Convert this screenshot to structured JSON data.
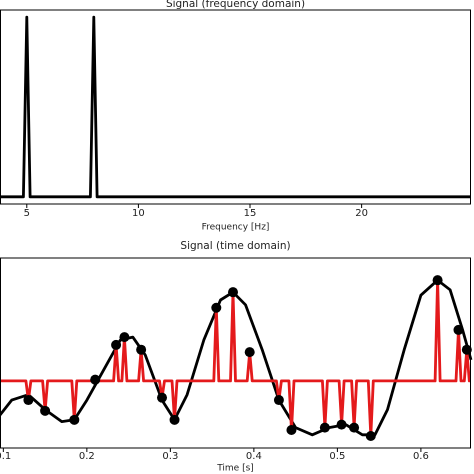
{
  "chart_data": [
    {
      "type": "line",
      "title": "Signal (frequency domain)",
      "x_label": "Frequency [Hz]",
      "xlim": [
        3.8,
        24.9
      ],
      "xticks": [
        5,
        10,
        15,
        20
      ],
      "ylim": [
        -0.04,
        1.04
      ],
      "series": [
        {
          "color": "#000000",
          "x": [
            3.8,
            4.85,
            5,
            5.15,
            7.85,
            8,
            8.15,
            24.9
          ],
          "values": [
            0,
            0,
            1,
            0,
            0,
            1,
            0,
            0
          ]
        }
      ]
    },
    {
      "type": "line",
      "title": "Signal (time domain)",
      "x_label": "Time [s]",
      "xlim": [
        0.096,
        0.66
      ],
      "xticks": [
        0.1,
        0.2,
        0.3,
        0.4,
        0.5,
        0.6
      ],
      "ylim": [
        -1.12,
        2.05
      ],
      "series": [
        {
          "color": "#000000",
          "x": [
            0.096,
            0.11,
            0.13,
            0.15,
            0.17,
            0.185,
            0.2,
            0.22,
            0.24,
            0.255,
            0.27,
            0.29,
            0.305,
            0.32,
            0.34,
            0.36,
            0.375,
            0.39,
            0.41,
            0.43,
            0.45,
            0.47,
            0.49,
            0.51,
            0.53,
            0.545,
            0.56,
            0.58,
            0.6,
            0.62,
            0.635,
            0.65,
            0.66
          ],
          "values": [
            -0.57,
            -0.32,
            -0.23,
            -0.48,
            -0.68,
            -0.65,
            -0.32,
            0.18,
            0.68,
            0.73,
            0.43,
            -0.32,
            -0.65,
            -0.23,
            0.68,
            1.35,
            1.48,
            1.27,
            0.52,
            -0.32,
            -0.78,
            -0.9,
            -0.78,
            -0.73,
            -0.9,
            -0.9,
            -0.48,
            0.52,
            1.43,
            1.68,
            1.52,
            0.85,
            0.35
          ]
        },
        {
          "color": "#e41a1c",
          "x": [
            0.096,
            0.127,
            0.13,
            0.133,
            0.147,
            0.15,
            0.153,
            0.182,
            0.185,
            0.188,
            0.207,
            0.21,
            0.213,
            0.232,
            0.235,
            0.238,
            0.242,
            0.245,
            0.248,
            0.262,
            0.265,
            0.268,
            0.287,
            0.29,
            0.293,
            0.302,
            0.305,
            0.308,
            0.352,
            0.355,
            0.358,
            0.372,
            0.375,
            0.378,
            0.392,
            0.395,
            0.398,
            0.427,
            0.43,
            0.433,
            0.442,
            0.445,
            0.448,
            0.482,
            0.485,
            0.488,
            0.502,
            0.505,
            0.508,
            0.517,
            0.52,
            0.523,
            0.537,
            0.54,
            0.543,
            0.617,
            0.62,
            0.623,
            0.642,
            0.645,
            0.648,
            0.652,
            0.655,
            0.658,
            0.66
          ],
          "values": [
            0,
            0,
            -0.32,
            0,
            0,
            -0.5,
            0,
            0,
            -0.65,
            0,
            0,
            0.02,
            0,
            0,
            0.6,
            0,
            0,
            0.73,
            0,
            0,
            0.52,
            0,
            0,
            -0.28,
            0,
            0,
            -0.65,
            0,
            0,
            1.22,
            0,
            0,
            1.48,
            0,
            0,
            0.48,
            0,
            0,
            -0.32,
            0,
            0,
            -0.82,
            0,
            0,
            -0.78,
            0,
            0,
            -0.73,
            0,
            0,
            -0.78,
            0,
            0,
            -0.92,
            0,
            0,
            1.68,
            0,
            0,
            0.85,
            0,
            0,
            0.52,
            0,
            0
          ]
        },
        {
          "color": "#000000",
          "marker": "circle",
          "x": [
            0.13,
            0.15,
            0.185,
            0.21,
            0.235,
            0.245,
            0.265,
            0.29,
            0.305,
            0.355,
            0.375,
            0.395,
            0.43,
            0.445,
            0.485,
            0.505,
            0.52,
            0.54,
            0.62,
            0.645,
            0.655
          ],
          "values": [
            -0.32,
            -0.5,
            -0.65,
            0.02,
            0.6,
            0.73,
            0.52,
            -0.28,
            -0.65,
            1.22,
            1.48,
            0.48,
            -0.32,
            -0.82,
            -0.78,
            -0.73,
            -0.78,
            -0.92,
            1.68,
            0.85,
            0.52
          ]
        }
      ]
    }
  ]
}
